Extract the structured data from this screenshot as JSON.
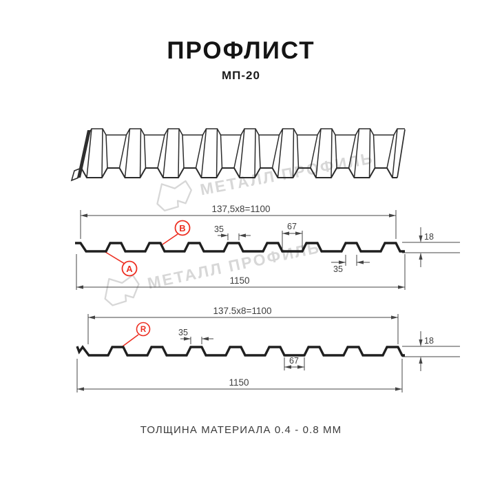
{
  "title": "ПРОФЛИСТ",
  "subtitle": "МП-20",
  "footer": "ТОЛЩИНА МАТЕРИАЛА 0.4 - 0.8 ММ",
  "watermark": {
    "brand": "МЕТАЛЛ ПРОФИЛЬ"
  },
  "colors": {
    "line": "#1f1f1f",
    "dim": "#454545",
    "red": "#ed2e21",
    "watermark": "#d7d7d7",
    "text": "#3e3e3e"
  },
  "drawing1": {
    "dims": {
      "pitch": "137,5x8=1100",
      "rib_top": "35",
      "valley": "67",
      "height": "18",
      "rib_bottom": "35",
      "total": "1150"
    },
    "callouts": [
      {
        "label": "A"
      },
      {
        "label": "B"
      }
    ]
  },
  "drawing2": {
    "dims": {
      "pitch": "137.5x8=1100",
      "rib_top": "35",
      "valley": "67",
      "height": "18",
      "total": "1150"
    },
    "callouts": [
      {
        "label": "R"
      }
    ]
  }
}
